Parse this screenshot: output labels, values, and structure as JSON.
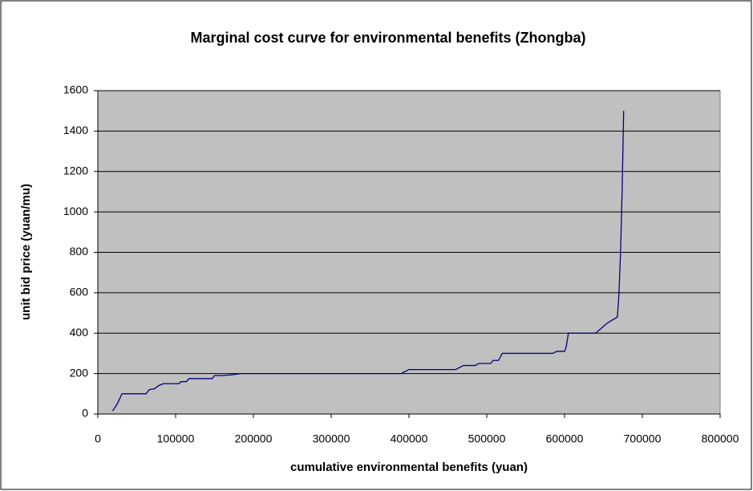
{
  "chart_data": {
    "type": "line",
    "title": "Marginal cost curve for environmental benefits (Zhongba)",
    "x_label": "cumulative environmental benefits (yuan)",
    "y_label": "unit bid price (yuan/mu)",
    "xlim": [
      0,
      800000
    ],
    "xticks": [
      0,
      100000,
      200000,
      300000,
      400000,
      500000,
      600000,
      700000,
      800000
    ],
    "ylim": [
      0,
      1600
    ],
    "yticks": [
      0,
      200,
      400,
      600,
      800,
      1000,
      1200,
      1400,
      1600
    ],
    "grid": true,
    "series": [
      {
        "color": "#000080",
        "x": [
          19000,
          25000,
          31000,
          62000,
          66000,
          73000,
          78000,
          84000,
          104000,
          107000,
          114000,
          117000,
          147000,
          150000,
          161000,
          175000,
          184000,
          214000,
          390000,
          400000,
          460000,
          470000,
          485000,
          490000,
          505000,
          508000,
          515000,
          520000,
          585000,
          590000,
          600000,
          602000,
          605000,
          640000,
          655000,
          668000,
          670000,
          672000,
          674000,
          676000
        ],
        "values": [
          15,
          50,
          100,
          100,
          120,
          125,
          140,
          150,
          150,
          160,
          160,
          175,
          175,
          190,
          190,
          195,
          200,
          200,
          200,
          220,
          220,
          240,
          240,
          250,
          250,
          265,
          265,
          300,
          300,
          310,
          310,
          330,
          400,
          400,
          450,
          480,
          600,
          800,
          1100,
          1500
        ]
      }
    ]
  }
}
